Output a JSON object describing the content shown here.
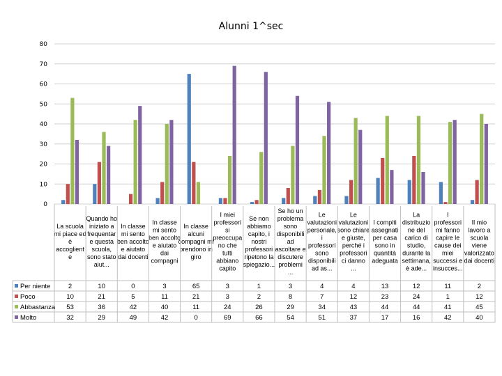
{
  "chart_data": {
    "type": "bar",
    "title": "Alunni 1^sec",
    "ylim": [
      0,
      80
    ],
    "yticks": [
      0,
      10,
      20,
      30,
      40,
      50,
      60,
      70,
      80
    ],
    "grid": true,
    "legend": "data-table-left",
    "categories": [
      "La scuola mi piace ed è accoglient e",
      "Quando ho iniziato a frequentar e questa scuola, sono stato aiut...",
      "In classe mi sento ben accolto e aiutato dai docenti",
      "In classe mi sento ben accolto e aiutato dai compagni",
      "In classe alcuni compagni mi prendono in giro",
      "I miei professori si preoccupa no che tutti abbiano capito",
      "Se non abbiamo capito, i nostri professori ripetono la spiegazio...",
      "Se ho un problema sono disponibili ad ascoltare e discutere problemi ...",
      "Le valutazioni personale, i professori sono disponibili ad as...",
      "Le valutazioni sono chiare e giuste, perché i professori ci danno ...",
      "I compiti assegnati per casa sono in quantità adeguata",
      "La distribuzio ne del carico di studio, durante la settimana, è ade...",
      "I professori mi fanno capire le cause dei miei successi e insucces...",
      "Il mio lavoro a scuola viene valorizzato dai docenti"
    ],
    "series": [
      {
        "name": "Per niente",
        "color": "#4F81BD",
        "values": [
          2,
          10,
          0,
          3,
          65,
          3,
          1,
          3,
          4,
          4,
          13,
          12,
          11,
          2
        ]
      },
      {
        "name": "Poco",
        "color": "#C0504D",
        "values": [
          10,
          21,
          5,
          11,
          21,
          3,
          2,
          8,
          7,
          12,
          23,
          24,
          1,
          12
        ]
      },
      {
        "name": "Abbastanza",
        "color": "#9BBB59",
        "values": [
          53,
          36,
          42,
          40,
          11,
          24,
          26,
          29,
          34,
          43,
          44,
          44,
          41,
          45
        ]
      },
      {
        "name": "Molto",
        "color": "#8064A2",
        "values": [
          32,
          29,
          49,
          42,
          0,
          69,
          66,
          54,
          51,
          37,
          17,
          16,
          42,
          40
        ]
      }
    ]
  }
}
